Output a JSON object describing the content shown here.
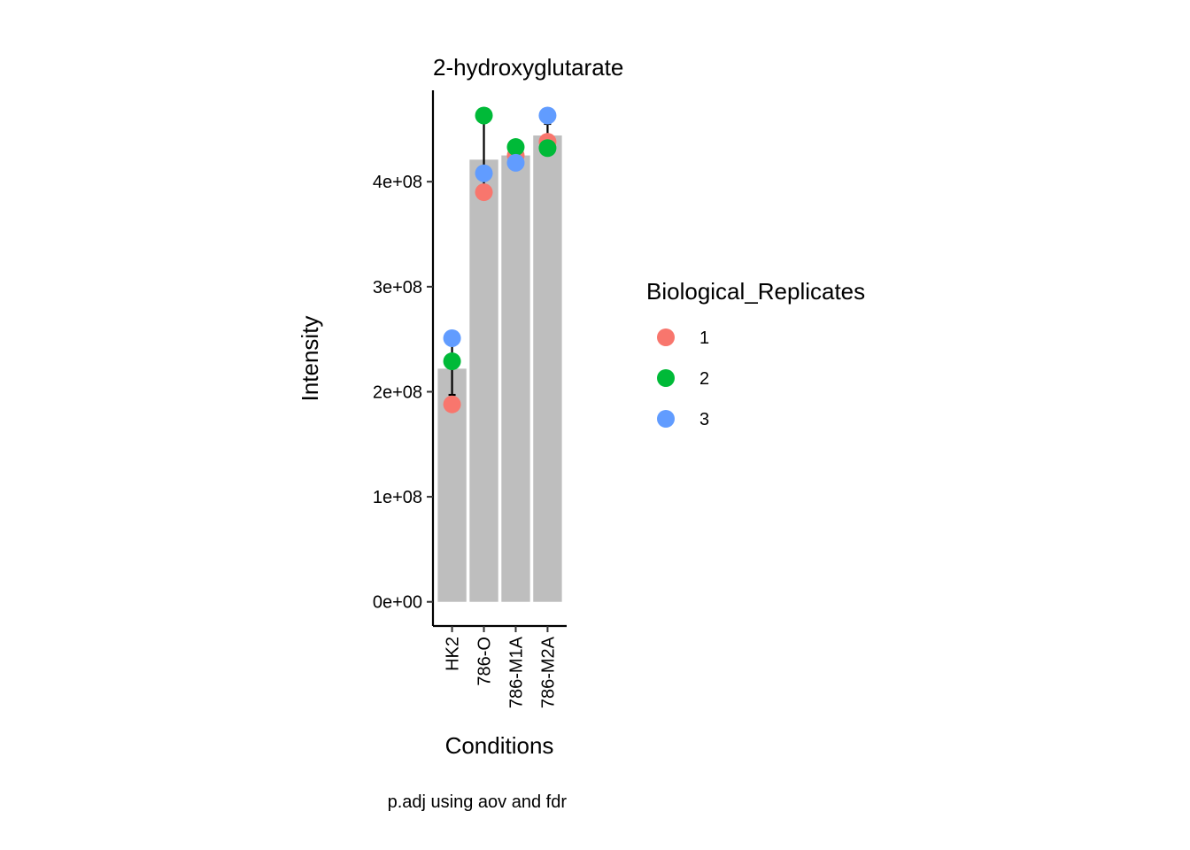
{
  "chart_data": {
    "type": "bar",
    "title": "2-hydroxyglutarate",
    "xlabel": "Conditions",
    "ylabel": "Intensity",
    "caption": "p.adj using  aov and fdr",
    "categories": [
      "HK2",
      "786-O",
      "786-M1A",
      "786-M2A"
    ],
    "values": [
      222000000,
      421000000,
      425000000,
      444000000
    ],
    "error_bars": [
      {
        "low": 197000000,
        "high": 247000000
      },
      {
        "low": 384000000,
        "high": 458000000
      },
      {
        "low": 418000000,
        "high": 432000000
      },
      {
        "low": 433000000,
        "high": 455000000
      }
    ],
    "ylim": [
      -23000000,
      487000000
    ],
    "yticks": [
      0,
      100000000,
      200000000,
      300000000,
      400000000
    ],
    "ytick_labels": [
      "0e+00",
      "1e+08",
      "2e+08",
      "3e+08",
      "4e+08"
    ],
    "bar_color": "#BEBEBE",
    "legend": {
      "title": "Biological_Replicates",
      "position": "right"
    },
    "series": [
      {
        "name": "1",
        "color": "#F8766D",
        "values": [
          188000000,
          390000000,
          425000000,
          438000000
        ]
      },
      {
        "name": "2",
        "color": "#00BA38",
        "values": [
          229000000,
          463000000,
          433000000,
          432000000
        ]
      },
      {
        "name": "3",
        "color": "#619CFF",
        "values": [
          251000000,
          408000000,
          418000000,
          463000000
        ]
      }
    ],
    "grid": false
  }
}
